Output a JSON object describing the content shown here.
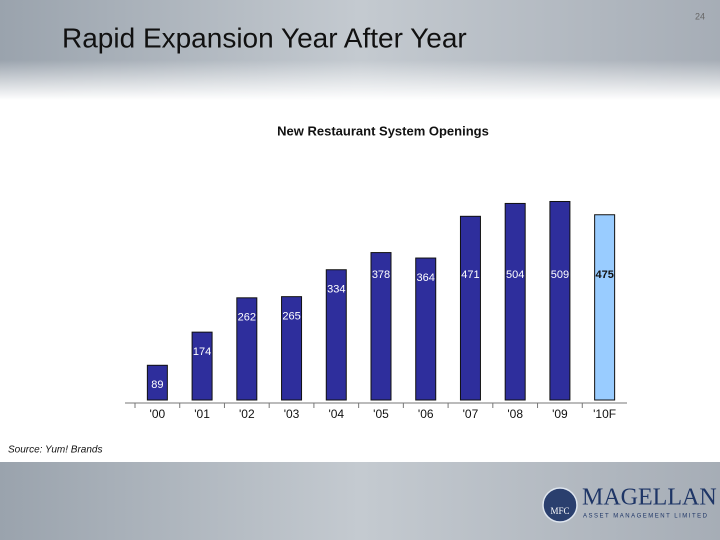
{
  "slide": {
    "title": "Rapid Expansion Year After Year",
    "page_number": "24",
    "source": "Source: Yum! Brands",
    "logo": {
      "mark": "MFC",
      "name": "MAGELLAN",
      "tagline": "ASSET MANAGEMENT LIMITED"
    }
  },
  "chart_data": {
    "type": "bar",
    "title": "New Restaurant System Openings",
    "categories": [
      "'00",
      "'01",
      "'02",
      "'03",
      "'04",
      "'05",
      "'06",
      "'07",
      "'08",
      "'09",
      "'10F"
    ],
    "values": [
      89,
      174,
      262,
      265,
      334,
      378,
      364,
      471,
      504,
      509,
      475
    ],
    "colors": [
      "#2e2e9c",
      "#2e2e9c",
      "#2e2e9c",
      "#2e2e9c",
      "#2e2e9c",
      "#2e2e9c",
      "#2e2e9c",
      "#2e2e9c",
      "#2e2e9c",
      "#2e2e9c",
      "#99ccff"
    ]
  }
}
